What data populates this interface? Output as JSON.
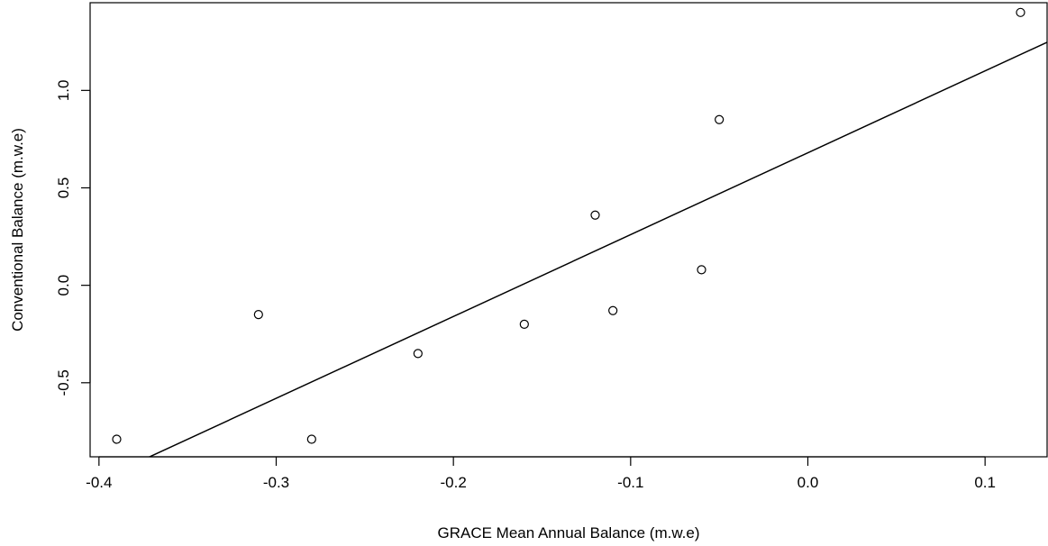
{
  "chart_data": {
    "type": "scatter",
    "title": "",
    "xlabel": "GRACE Mean Annual Balance (m.w.e)",
    "ylabel": "Conventional Balance (m.w.e)",
    "xlim": [
      -0.405,
      0.135
    ],
    "ylim": [
      -0.88,
      1.45
    ],
    "x_ticks": [
      -0.4,
      -0.3,
      -0.2,
      -0.1,
      0.0,
      0.1
    ],
    "x_tick_labels": [
      "-0.4",
      "-0.3",
      "-0.2",
      "-0.1",
      "0.0",
      "0.1"
    ],
    "y_ticks": [
      -0.5,
      0.0,
      0.5,
      1.0
    ],
    "y_tick_labels": [
      "-0.5",
      "0.0",
      "0.5",
      "1.0"
    ],
    "grid": false,
    "marker": "open-circle",
    "points": [
      {
        "x": -0.39,
        "y": -0.79
      },
      {
        "x": -0.31,
        "y": -0.15
      },
      {
        "x": -0.28,
        "y": -0.79
      },
      {
        "x": -0.22,
        "y": -0.35
      },
      {
        "x": -0.16,
        "y": -0.2
      },
      {
        "x": -0.12,
        "y": 0.36
      },
      {
        "x": -0.11,
        "y": -0.13
      },
      {
        "x": -0.06,
        "y": 0.08
      },
      {
        "x": -0.05,
        "y": 0.85
      },
      {
        "x": 0.12,
        "y": 1.4
      }
    ],
    "regression_line": {
      "slope": 4.2,
      "intercept": 0.68
    }
  }
}
